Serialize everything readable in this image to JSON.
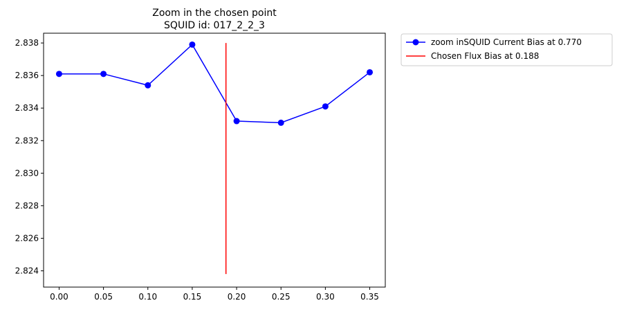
{
  "chart_data": {
    "type": "line",
    "title": "Zoom in the chosen point",
    "subtitle": "SQUID id: 017_2_2_3",
    "xlabel": "",
    "ylabel": "",
    "xlim": [
      -0.0175,
      0.3675
    ],
    "ylim": [
      2.823,
      2.8386
    ],
    "xticks": [
      0.0,
      0.05,
      0.1,
      0.15,
      0.2,
      0.25,
      0.3,
      0.35
    ],
    "xtick_labels": [
      "0.00",
      "0.05",
      "0.10",
      "0.15",
      "0.20",
      "0.25",
      "0.30",
      "0.35"
    ],
    "yticks": [
      2.824,
      2.826,
      2.828,
      2.83,
      2.832,
      2.834,
      2.836,
      2.838
    ],
    "ytick_labels": [
      "2.824",
      "2.826",
      "2.828",
      "2.830",
      "2.832",
      "2.834",
      "2.836",
      "2.838"
    ],
    "grid": false,
    "legend_placement": "outside-top-right",
    "series": [
      {
        "name": "zoom inSQUID Current Bias at 0.770",
        "kind": "line-marker",
        "color": "#0000ff",
        "x": [
          0.0,
          0.05,
          0.1,
          0.15,
          0.2,
          0.25,
          0.3,
          0.35
        ],
        "y": [
          2.8361,
          2.8361,
          2.8354,
          2.8379,
          2.8332,
          2.8331,
          2.8341,
          2.8362
        ]
      },
      {
        "name": "Chosen Flux Bias at 0.188",
        "kind": "vline",
        "color": "#ff0000",
        "x": 0.188,
        "y": [
          2.8238,
          2.838
        ]
      }
    ]
  }
}
